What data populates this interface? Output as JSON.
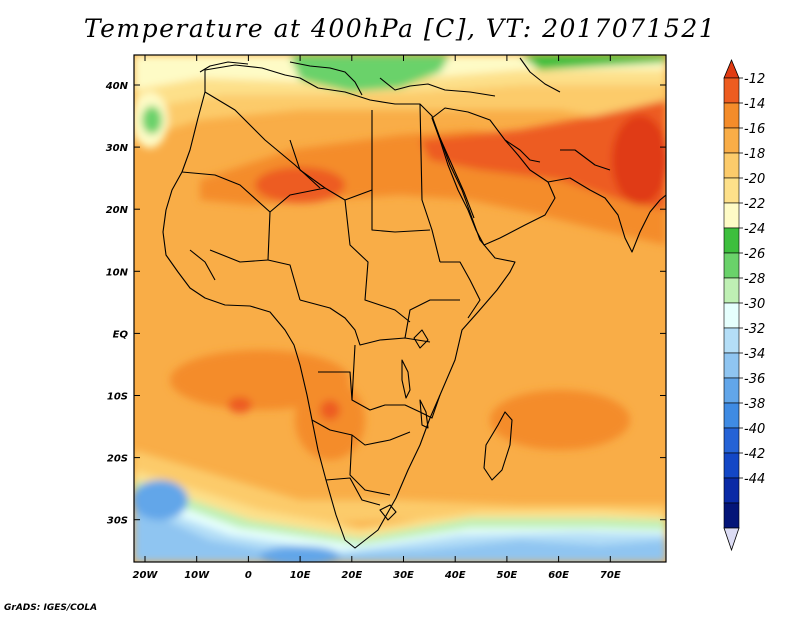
{
  "title": "Temperature at 400hPa [C], VT: 2017071521",
  "footer": "GrADS: IGES/COLA",
  "colors": {
    "t_m22": "#fefbc6",
    "t_m20": "#fde08a",
    "t_m18": "#fccb6b",
    "t_m16": "#f9ad47",
    "t_m14": "#f48c2a",
    "t_m12": "#ed5c20",
    "t_max": "#e03b12",
    "green_dark": "#3dbf3d",
    "green_mid": "#6ad26a",
    "green_light": "#bff0b4",
    "cyan_light": "#e6fffd",
    "blue_pale": "#b4def7",
    "blue_light": "#8fc5f1",
    "blue_mid": "#62a6e9"
  },
  "map": {
    "x_ticks": [
      {
        "label": "20W"
      },
      {
        "label": "10W"
      },
      {
        "label": "0"
      },
      {
        "label": "10E"
      },
      {
        "label": "20E"
      },
      {
        "label": "30E"
      },
      {
        "label": "40E"
      },
      {
        "label": "50E"
      },
      {
        "label": "60E"
      },
      {
        "label": "70E"
      }
    ],
    "y_ticks": [
      {
        "label": "40N"
      },
      {
        "label": "30N"
      },
      {
        "label": "20N"
      },
      {
        "label": "10N"
      },
      {
        "label": "EQ"
      },
      {
        "label": "10S"
      },
      {
        "label": "20S"
      },
      {
        "label": "30S"
      }
    ]
  },
  "colorbar": {
    "colors": [
      "#e03b12",
      "#ed5c20",
      "#f48c2a",
      "#f9ad47",
      "#fccb6b",
      "#fde08a",
      "#fefbc6",
      "#3dbf3d",
      "#6ad26a",
      "#bff0b4",
      "#e6fffd",
      "#b4def7",
      "#8fc5f1",
      "#62a6e9",
      "#3f8be3",
      "#2563d6",
      "#1347c6",
      "#0a2aa6",
      "#041578",
      "#dcdcf4"
    ],
    "labels": [
      "-12",
      "-14",
      "-16",
      "-18",
      "-20",
      "-22",
      "-24",
      "-26",
      "-28",
      "-30",
      "-32",
      "-34",
      "-36",
      "-38",
      "-40",
      "-42",
      "-44"
    ]
  }
}
